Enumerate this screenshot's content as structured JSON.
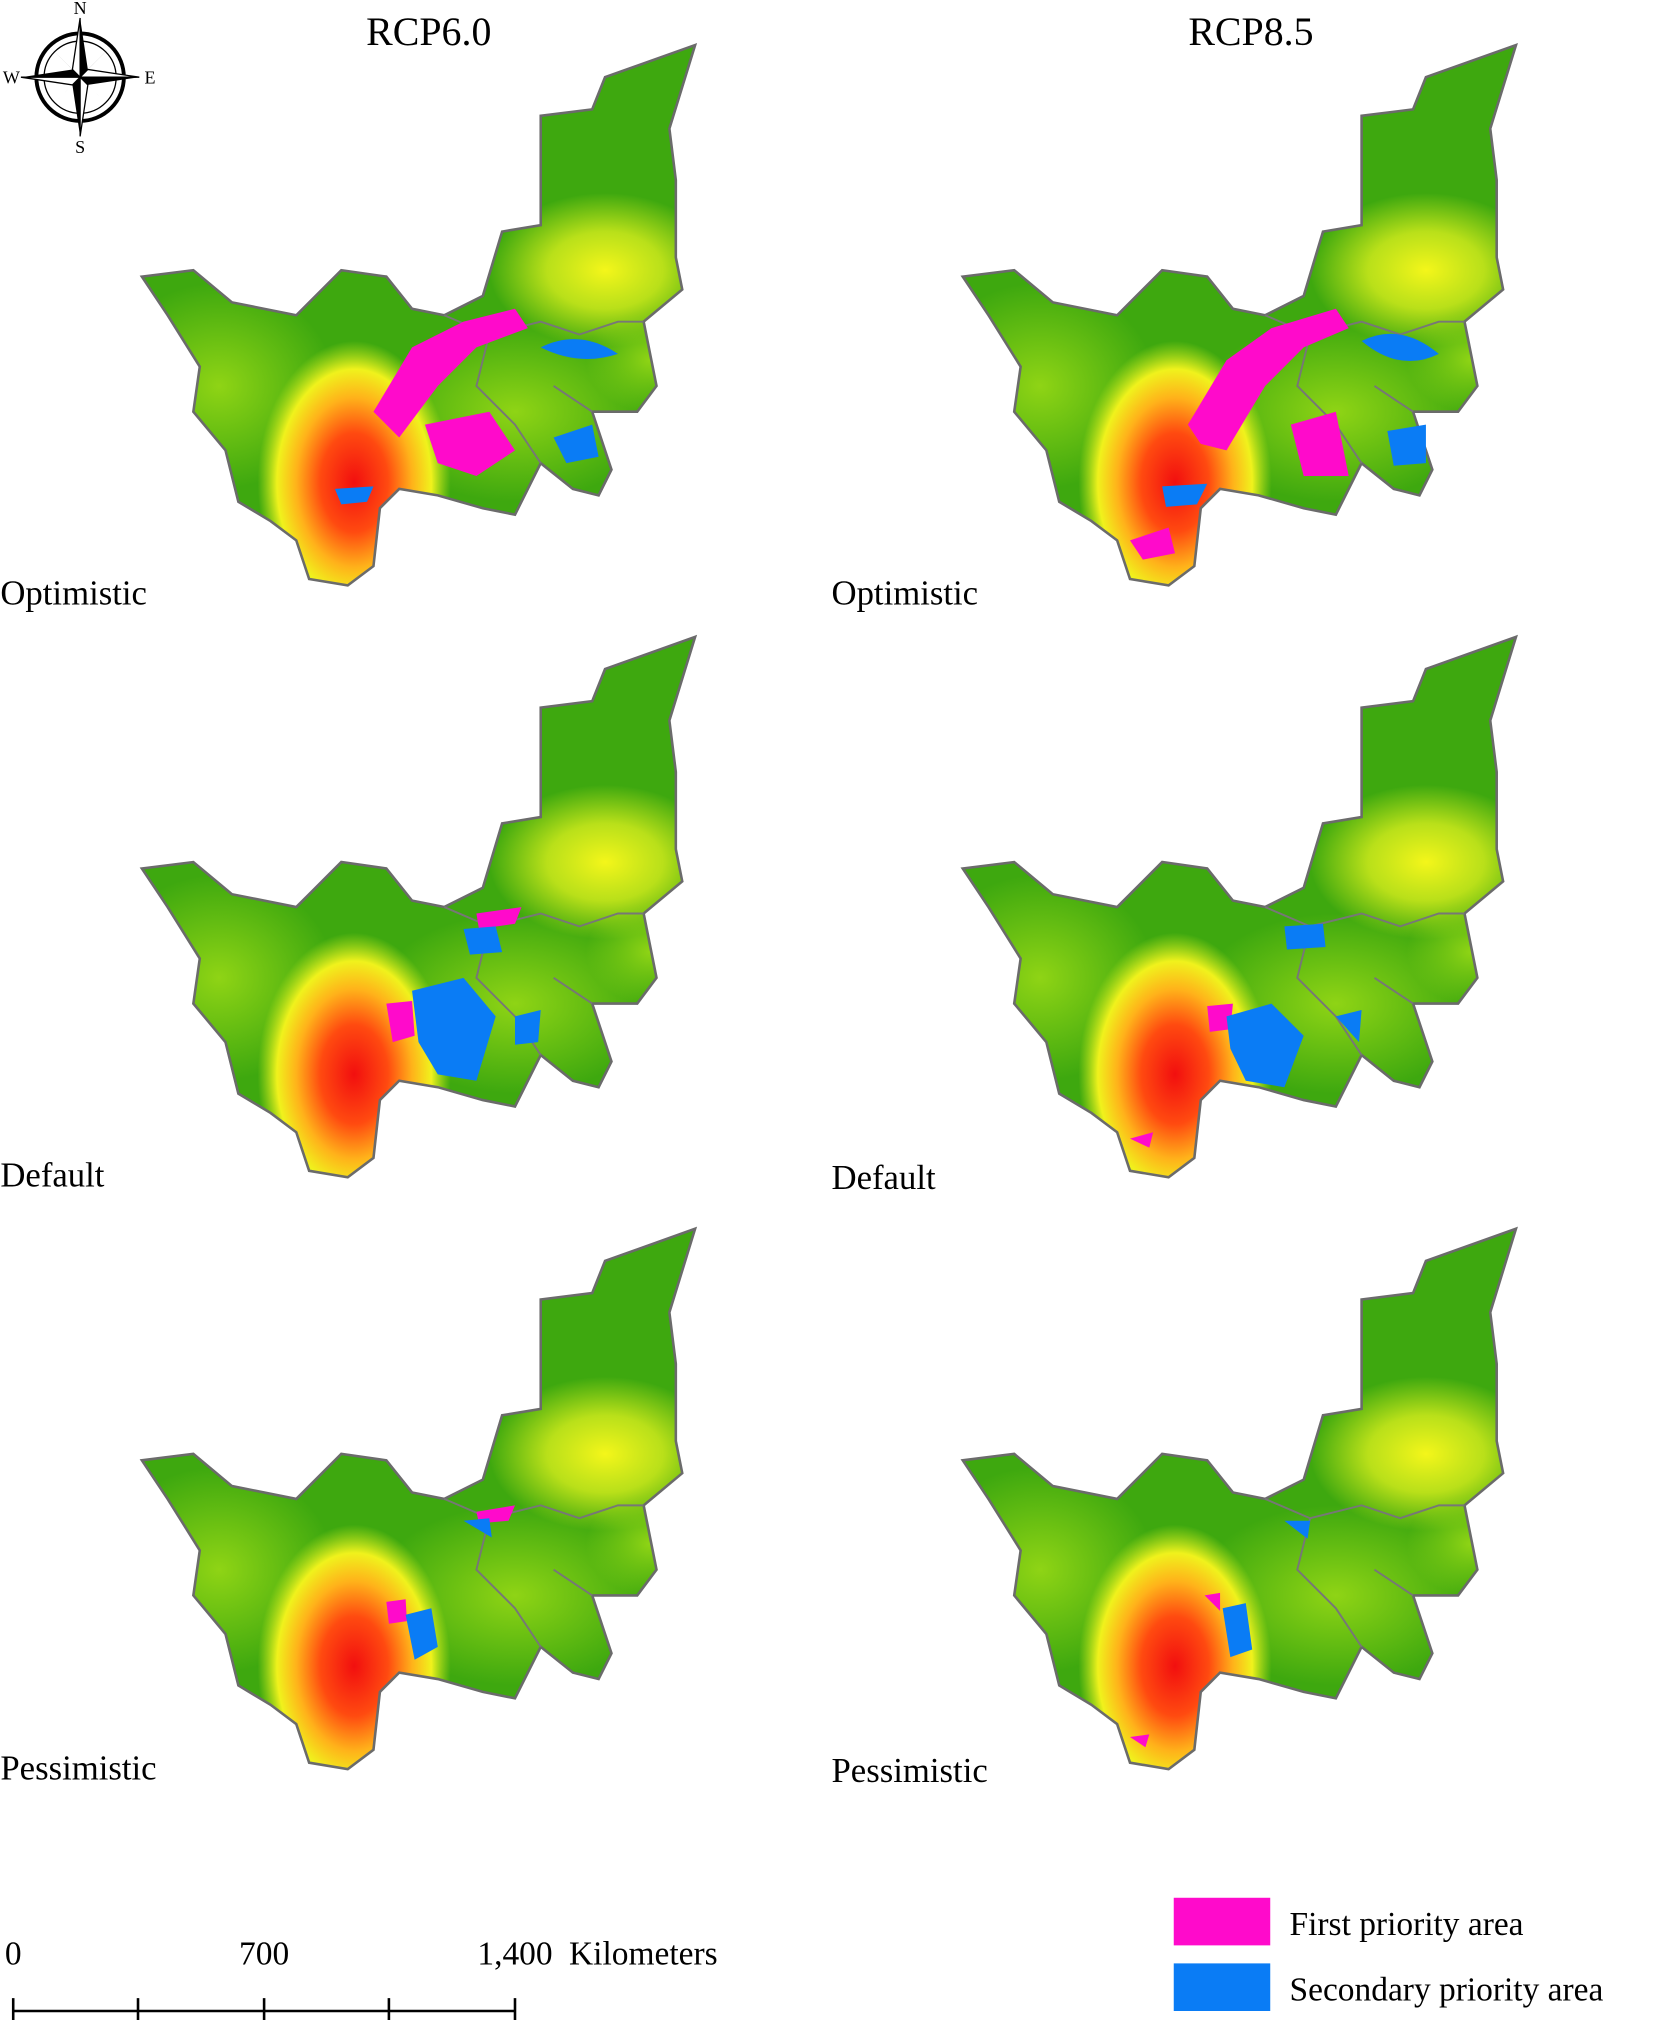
{
  "compass": {
    "north": "N",
    "south": "S",
    "east": "E",
    "west": "W"
  },
  "columns": [
    "RCP6.0",
    "RCP8.5"
  ],
  "rows": [
    "Optimistic",
    "Default",
    "Pessimistic"
  ],
  "scale_bar": {
    "labels": [
      "0",
      "700",
      "1,400"
    ],
    "unit": "Kilometers"
  },
  "legend": [
    {
      "label": "First priority area",
      "color": "#ff0acb"
    },
    {
      "label": "Secondary priority area",
      "color": "#0a7cf5"
    }
  ]
}
